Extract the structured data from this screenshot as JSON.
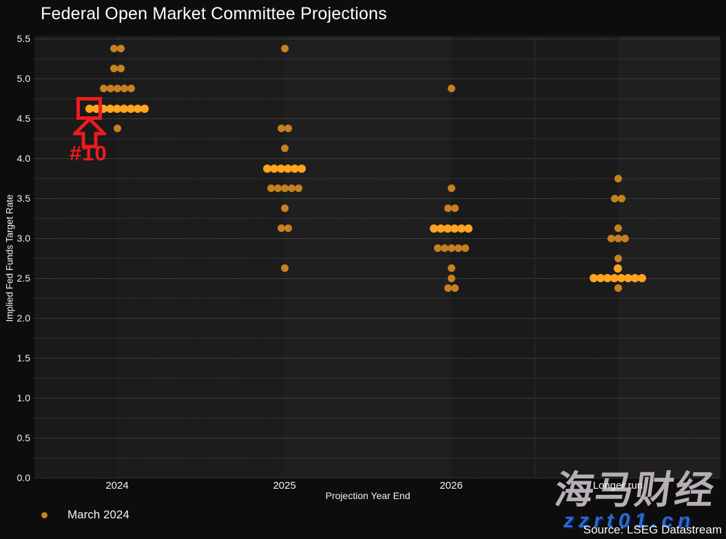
{
  "title": "Federal Open Market Committee Projections",
  "y_axis": {
    "label": "Implied Fed Funds Target Rate",
    "min": 0.0,
    "max": 5.5,
    "tick_step": 0.5,
    "grid_step": 0.25,
    "tick_labels": [
      "5.5",
      "5.0",
      "4.5",
      "4.0",
      "3.5",
      "3.0",
      "2.5",
      "2.0",
      "1.5",
      "1.0",
      "0.5",
      "0.0"
    ]
  },
  "x_axis": {
    "label": "Projection Year End",
    "categories": [
      "2024",
      "2025",
      "2026",
      "Longer run"
    ]
  },
  "legend": {
    "items": [
      {
        "label": "March 2024",
        "color": "#c6811f"
      }
    ]
  },
  "annotation": {
    "label": "#10",
    "color": "#ee1b1e",
    "target": {
      "category": "2024",
      "rate": 4.625,
      "dot_position": "leftmost",
      "dot_number": 10
    }
  },
  "source": "Source: LSEG Datastream",
  "watermark": {
    "line1": "海马财经",
    "line2": "zzrt01.cn",
    "cjk_color": "#b7aeb6",
    "url_color": "#2b6bd0"
  },
  "colors": {
    "dot": "#c6811f",
    "dot_median": "#ffa41e",
    "annotation_red": "#ee1b1e",
    "plot_background": "#1a1a1a",
    "page_background": "#0d0d0d"
  },
  "chart_data": {
    "type": "scatter",
    "subtype": "fomc-dot-plot",
    "title": "Federal Open Market Committee Projections",
    "xlabel": "Projection Year End",
    "ylabel": "Implied Fed Funds Target Rate",
    "ylim": [
      0.0,
      5.5
    ],
    "grid": "dotted, every 0.25",
    "legend_position": "bottom-left",
    "categories": [
      "2024",
      "2025",
      "2026",
      "Longer run"
    ],
    "series": [
      {
        "name": "March 2024",
        "groups": [
          {
            "category": "2024",
            "points": [
              {
                "rate": 5.375,
                "count": 2
              },
              {
                "rate": 5.125,
                "count": 2
              },
              {
                "rate": 4.875,
                "count": 5
              },
              {
                "rate": 4.625,
                "count": 9,
                "median_highlight": true
              },
              {
                "rate": 4.375,
                "count": 1
              }
            ]
          },
          {
            "category": "2025",
            "points": [
              {
                "rate": 5.375,
                "count": 1
              },
              {
                "rate": 4.375,
                "count": 2
              },
              {
                "rate": 4.125,
                "count": 1
              },
              {
                "rate": 3.875,
                "count": 6,
                "median_highlight": true
              },
              {
                "rate": 3.625,
                "count": 5
              },
              {
                "rate": 3.375,
                "count": 1
              },
              {
                "rate": 3.125,
                "count": 2
              },
              {
                "rate": 2.625,
                "count": 1
              }
            ]
          },
          {
            "category": "2026",
            "points": [
              {
                "rate": 4.875,
                "count": 1
              },
              {
                "rate": 3.625,
                "count": 1
              },
              {
                "rate": 3.375,
                "count": 2
              },
              {
                "rate": 3.125,
                "count": 6,
                "median_highlight": true
              },
              {
                "rate": 2.875,
                "count": 5
              },
              {
                "rate": 2.625,
                "count": 1
              },
              {
                "rate": 2.5,
                "count": 1
              },
              {
                "rate": 2.375,
                "count": 2
              }
            ]
          },
          {
            "category": "Longer run",
            "points": [
              {
                "rate": 3.75,
                "count": 1
              },
              {
                "rate": 3.5,
                "count": 2
              },
              {
                "rate": 3.125,
                "count": 1
              },
              {
                "rate": 3.0,
                "count": 3
              },
              {
                "rate": 2.75,
                "count": 1
              },
              {
                "rate": 2.625,
                "count": 1,
                "median_highlight": true
              },
              {
                "rate": 2.5,
                "count": 8,
                "median_highlight": true
              },
              {
                "rate": 2.375,
                "count": 1
              }
            ]
          }
        ]
      }
    ],
    "annotation": {
      "text": "#10",
      "category": "2024",
      "rate": 4.625,
      "note": "red box + arrow marking the 10th (median) dot"
    }
  }
}
